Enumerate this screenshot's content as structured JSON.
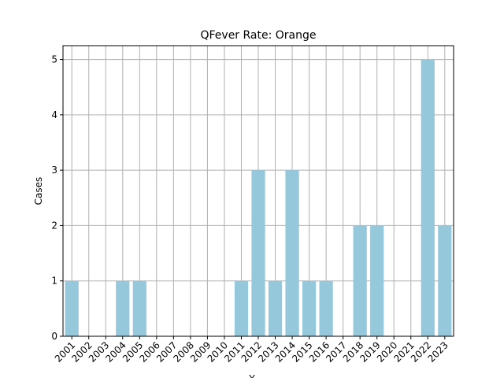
{
  "chart_data": {
    "type": "bar",
    "title": "QFever Rate: Orange",
    "xlabel": "Y",
    "ylabel": "Cases",
    "categories": [
      "2001",
      "2002",
      "2003",
      "2004",
      "2005",
      "2006",
      "2007",
      "2008",
      "2009",
      "2010",
      "2011",
      "2012",
      "2013",
      "2014",
      "2015",
      "2016",
      "2017",
      "2018",
      "2019",
      "2020",
      "2021",
      "2022",
      "2023"
    ],
    "values": [
      1,
      0,
      0,
      1,
      1,
      0,
      0,
      0,
      0,
      0,
      1,
      3,
      1,
      3,
      1,
      1,
      0,
      2,
      2,
      0,
      0,
      5,
      2
    ],
    "ylim": [
      0,
      5.25
    ],
    "yticks": [
      0,
      1,
      2,
      3,
      4,
      5
    ],
    "grid": true,
    "bar_color": "#96c8dc"
  }
}
